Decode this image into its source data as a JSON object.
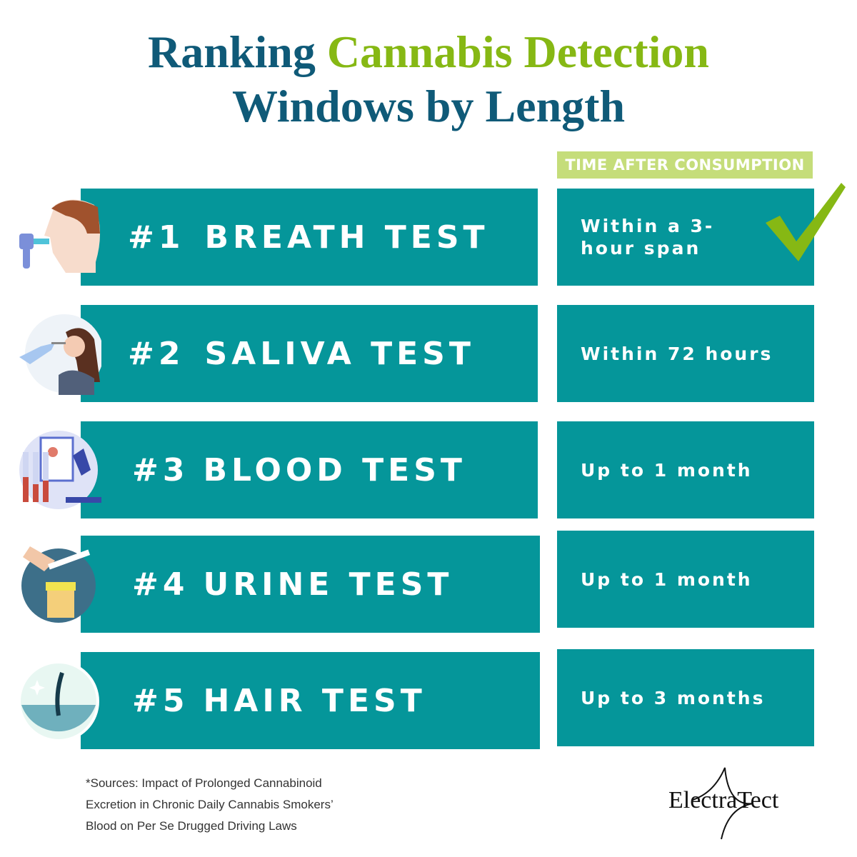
{
  "header": {
    "title_start": "Ranking",
    "title_highlight": "Cannabis Detection",
    "title_end": "Windows by Length",
    "column_label": "TIME AFTER CONSUMPTION"
  },
  "rows": [
    {
      "rank": "#1",
      "test": "BREATH TEST",
      "window": "Within a 3-hour span"
    },
    {
      "rank": "#2",
      "test": "SALIVA TEST",
      "window": "Within 72 hours"
    },
    {
      "rank": "#3",
      "test": "BLOOD TEST",
      "window": "Up to 1 month"
    },
    {
      "rank": "#4",
      "test": "URINE TEST",
      "window": "Up to 1 month"
    },
    {
      "rank": "#5",
      "test": "HAIR TEST",
      "window": "Up to 3 months"
    }
  ],
  "footer": {
    "sources": [
      "*Sources: Impact of Prolonged Cannabinoid",
      "Excretion in Chronic Daily Cannabis Smokers’",
      "Blood on Per Se Drugged Driving Laws"
    ],
    "logo": "ElectraTect"
  }
}
